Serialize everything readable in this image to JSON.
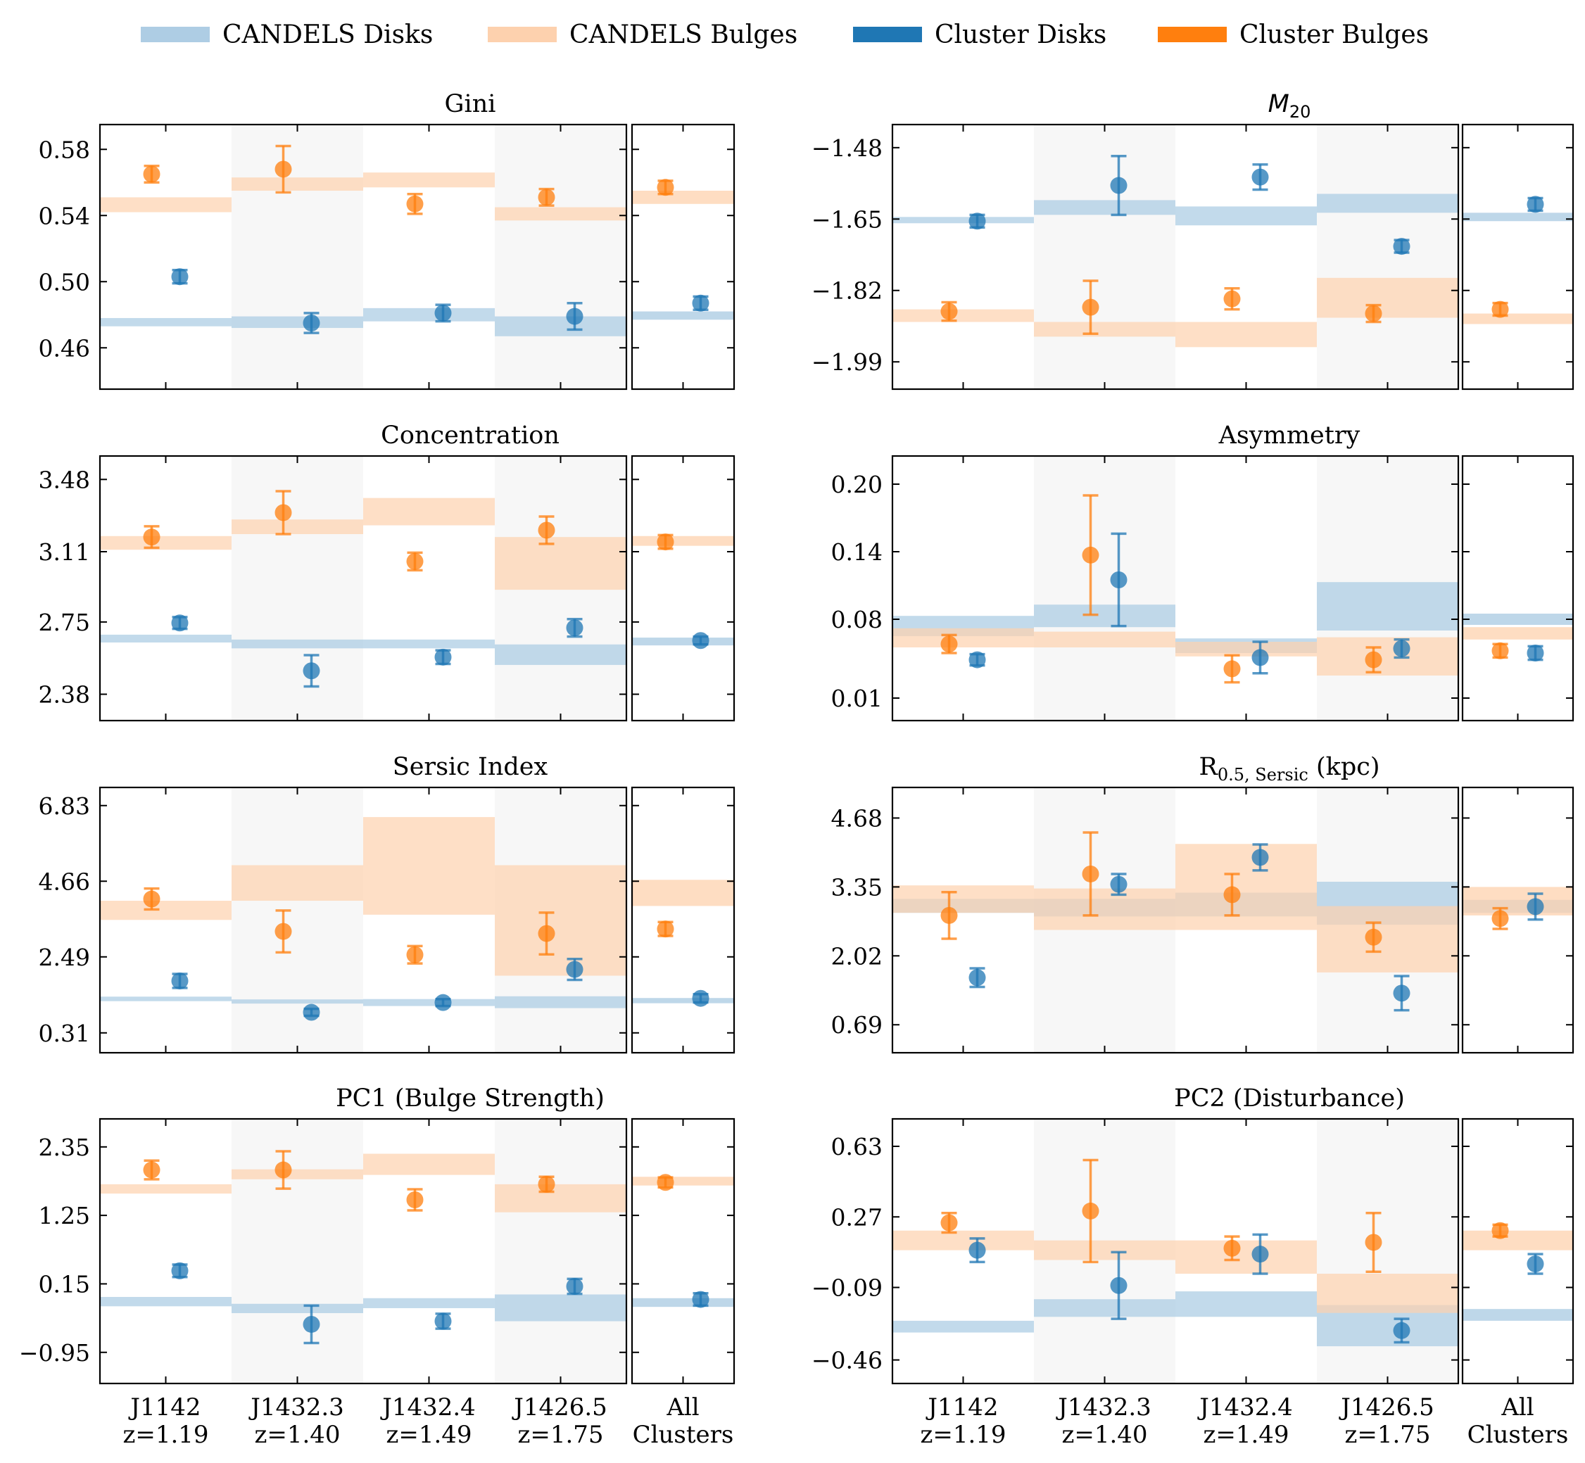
{
  "colors": {
    "candels_disk": "#aecde4",
    "candels_bulge": "#fdd1ae",
    "cluster_disk": "#1f77b4",
    "cluster_bulge": "#ff7f0e",
    "overlap": "#b3b5b8",
    "shade": "#f7f7f7"
  },
  "legend": [
    {
      "label": "CANDELS Disks",
      "color": "#aecde4"
    },
    {
      "label": "CANDELS Bulges",
      "color": "#fdd1ae"
    },
    {
      "label": "Cluster Disks",
      "color": "#1f77b4"
    },
    {
      "label": "Cluster Bulges",
      "color": "#ff7f0e"
    }
  ],
  "categories": [
    {
      "name": "J1142",
      "z": "z=1.19"
    },
    {
      "name": "J1432.3",
      "z": "z=1.40"
    },
    {
      "name": "J1432.4",
      "z": "z=1.49"
    },
    {
      "name": "J1426.5",
      "z": "z=1.75"
    }
  ],
  "all_label": [
    "All",
    "Clusters"
  ],
  "chart_data": [
    {
      "type": "scatter",
      "title": "Gini",
      "ylim": [
        0.435,
        0.595
      ],
      "yticks": [
        {
          "v": 0.58,
          "label": "0.58"
        },
        {
          "v": 0.54,
          "label": "0.54"
        },
        {
          "v": 0.5,
          "label": "0.50"
        },
        {
          "v": 0.46,
          "label": "0.46"
        }
      ],
      "disk_points": [
        {
          "y": 0.503,
          "err": 0.004
        },
        {
          "y": 0.475,
          "err": 0.006
        },
        {
          "y": 0.481,
          "err": 0.005
        },
        {
          "y": 0.479,
          "err": 0.008
        }
      ],
      "bulge_points": [
        {
          "y": 0.565,
          "err": 0.005
        },
        {
          "y": 0.568,
          "err": 0.014
        },
        {
          "y": 0.547,
          "err": 0.006
        },
        {
          "y": 0.551,
          "err": 0.005
        }
      ],
      "disk_bands": [
        [
          0.473,
          0.478
        ],
        [
          0.472,
          0.479
        ],
        [
          0.476,
          0.484
        ],
        [
          0.467,
          0.479
        ]
      ],
      "bulge_bands": [
        [
          0.542,
          0.551
        ],
        [
          0.555,
          0.563
        ],
        [
          0.557,
          0.566
        ],
        [
          0.537,
          0.545
        ]
      ],
      "all": {
        "disk": {
          "y": 0.487,
          "err": 0.004
        },
        "bulge": {
          "y": 0.557,
          "err": 0.004
        },
        "disk_band": [
          0.477,
          0.482
        ],
        "bulge_band": [
          0.547,
          0.555
        ]
      }
    },
    {
      "type": "scatter",
      "title": "M20",
      "ylim": [
        -2.055,
        -1.425
      ],
      "yticks": [
        {
          "v": -1.48,
          "label": "−1.48"
        },
        {
          "v": -1.65,
          "label": "−1.65"
        },
        {
          "v": -1.82,
          "label": "−1.82"
        },
        {
          "v": -1.99,
          "label": "−1.99"
        }
      ],
      "disk_points": [
        {
          "y": -1.655,
          "err": 0.015
        },
        {
          "y": -1.57,
          "err": 0.07
        },
        {
          "y": -1.55,
          "err": 0.03
        },
        {
          "y": -1.715,
          "err": 0.015
        }
      ],
      "bulge_points": [
        {
          "y": -1.87,
          "err": 0.022
        },
        {
          "y": -1.86,
          "err": 0.063
        },
        {
          "y": -1.84,
          "err": 0.025
        },
        {
          "y": -1.875,
          "err": 0.02
        }
      ],
      "disk_bands": [
        [
          -1.66,
          -1.645
        ],
        [
          -1.64,
          -1.605
        ],
        [
          -1.665,
          -1.62
        ],
        [
          -1.635,
          -1.59
        ]
      ],
      "bulge_bands": [
        [
          -1.895,
          -1.865
        ],
        [
          -1.93,
          -1.895
        ],
        [
          -1.955,
          -1.895
        ],
        [
          -1.885,
          -1.79
        ]
      ],
      "all": {
        "disk": {
          "y": -1.615,
          "err": 0.015
        },
        "bulge": {
          "y": -1.865,
          "err": 0.015
        },
        "disk_band": [
          -1.655,
          -1.635
        ],
        "bulge_band": [
          -1.9,
          -1.875
        ]
      }
    },
    {
      "type": "scatter",
      "title": "Concentration",
      "ylim": [
        2.245,
        3.6
      ],
      "yticks": [
        {
          "v": 3.48,
          "label": "3.48"
        },
        {
          "v": 3.11,
          "label": "3.11"
        },
        {
          "v": 2.75,
          "label": "2.75"
        },
        {
          "v": 2.38,
          "label": "2.38"
        }
      ],
      "disk_points": [
        {
          "y": 2.745,
          "err": 0.03
        },
        {
          "y": 2.5,
          "err": 0.08
        },
        {
          "y": 2.57,
          "err": 0.035
        },
        {
          "y": 2.72,
          "err": 0.045
        }
      ],
      "bulge_points": [
        {
          "y": 3.185,
          "err": 0.055
        },
        {
          "y": 3.31,
          "err": 0.11
        },
        {
          "y": 3.06,
          "err": 0.045
        },
        {
          "y": 3.22,
          "err": 0.07
        }
      ],
      "disk_bands": [
        [
          2.645,
          2.685
        ],
        [
          2.615,
          2.66
        ],
        [
          2.615,
          2.66
        ],
        [
          2.53,
          2.635
        ]
      ],
      "bulge_bands": [
        [
          3.12,
          3.19
        ],
        [
          3.2,
          3.275
        ],
        [
          3.245,
          3.385
        ],
        [
          2.915,
          3.185
        ]
      ],
      "all": {
        "disk": {
          "y": 2.655,
          "err": 0.02
        },
        "bulge": {
          "y": 3.16,
          "err": 0.035
        },
        "disk_band": [
          2.63,
          2.67
        ],
        "bulge_band": [
          3.14,
          3.19
        ]
      }
    },
    {
      "type": "scatter",
      "title": "Asymmetry",
      "ylim": [
        -0.01,
        0.225
      ],
      "yticks": [
        {
          "v": 0.2,
          "label": "0.20"
        },
        {
          "v": 0.14,
          "label": "0.14"
        },
        {
          "v": 0.08,
          "label": "0.08"
        },
        {
          "v": 0.01,
          "label": "0.01"
        }
      ],
      "disk_points": [
        {
          "y": 0.044,
          "err": 0.005
        },
        {
          "y": 0.115,
          "err": 0.041
        },
        {
          "y": 0.046,
          "err": 0.014
        },
        {
          "y": 0.054,
          "err": 0.008
        }
      ],
      "bulge_points": [
        {
          "y": 0.058,
          "err": 0.008
        },
        {
          "y": 0.137,
          "err": 0.053
        },
        {
          "y": 0.036,
          "err": 0.012
        },
        {
          "y": 0.044,
          "err": 0.011
        }
      ],
      "disk_bands": [
        [
          0.065,
          0.083
        ],
        [
          0.073,
          0.093
        ],
        [
          0.05,
          0.063
        ],
        [
          0.07,
          0.113
        ]
      ],
      "bulge_bands": [
        [
          0.055,
          0.072
        ],
        [
          0.055,
          0.069
        ],
        [
          0.047,
          0.06
        ],
        [
          0.03,
          0.064
        ]
      ],
      "all": {
        "disk": {
          "y": 0.05,
          "err": 0.006
        },
        "bulge": {
          "y": 0.052,
          "err": 0.006
        },
        "disk_band": [
          0.075,
          0.085
        ],
        "bulge_band": [
          0.062,
          0.073
        ]
      }
    },
    {
      "type": "scatter",
      "title": "Sersic Index",
      "ylim": [
        -0.26,
        7.35
      ],
      "yticks": [
        {
          "v": 6.83,
          "label": "6.83"
        },
        {
          "v": 4.66,
          "label": "4.66"
        },
        {
          "v": 2.49,
          "label": "2.49"
        },
        {
          "v": 0.31,
          "label": "0.31"
        }
      ],
      "disk_points": [
        {
          "y": 1.8,
          "err": 0.2
        },
        {
          "y": 0.9,
          "err": 0.1
        },
        {
          "y": 1.18,
          "err": 0.1
        },
        {
          "y": 2.13,
          "err": 0.3
        }
      ],
      "bulge_points": [
        {
          "y": 4.15,
          "err": 0.3
        },
        {
          "y": 3.22,
          "err": 0.6
        },
        {
          "y": 2.55,
          "err": 0.25
        },
        {
          "y": 3.16,
          "err": 0.6
        }
      ],
      "disk_bands": [
        [
          1.22,
          1.35
        ],
        [
          1.15,
          1.27
        ],
        [
          1.08,
          1.28
        ],
        [
          1.02,
          1.36
        ]
      ],
      "bulge_bands": [
        [
          3.55,
          4.1
        ],
        [
          4.1,
          5.12
        ],
        [
          3.7,
          6.5
        ],
        [
          1.95,
          5.12
        ]
      ],
      "all": {
        "disk": {
          "y": 1.3,
          "err": 0.12
        },
        "bulge": {
          "y": 3.29,
          "err": 0.2
        },
        "disk_band": [
          1.16,
          1.31
        ],
        "bulge_band": [
          3.95,
          4.7
        ]
      }
    },
    {
      "type": "scatter",
      "title": "R0.5,Sersic (kpc)",
      "title_main": "R",
      "title_sub": "0.5, Sersic",
      "title_rest": " (kpc)",
      "ylim": [
        0.15,
        5.27
      ],
      "yticks": [
        {
          "v": 4.68,
          "label": "4.68"
        },
        {
          "v": 3.35,
          "label": "3.35"
        },
        {
          "v": 2.02,
          "label": "2.02"
        },
        {
          "v": 0.69,
          "label": "0.69"
        }
      ],
      "disk_points": [
        {
          "y": 1.6,
          "err": 0.18
        },
        {
          "y": 3.4,
          "err": 0.2
        },
        {
          "y": 3.92,
          "err": 0.25
        },
        {
          "y": 1.3,
          "err": 0.33
        }
      ],
      "bulge_points": [
        {
          "y": 2.8,
          "err": 0.45
        },
        {
          "y": 3.6,
          "err": 0.8
        },
        {
          "y": 3.2,
          "err": 0.4
        },
        {
          "y": 2.38,
          "err": 0.28
        }
      ],
      "disk_bands": [
        [
          2.85,
          3.12
        ],
        [
          2.78,
          3.12
        ],
        [
          2.78,
          3.24
        ],
        [
          2.62,
          3.45
        ]
      ],
      "bulge_bands": [
        [
          2.85,
          3.38
        ],
        [
          2.52,
          3.32
        ],
        [
          2.52,
          4.18
        ],
        [
          1.7,
          2.98
        ]
      ],
      "all": {
        "disk": {
          "y": 2.97,
          "err": 0.25
        },
        "bulge": {
          "y": 2.74,
          "err": 0.2
        },
        "disk_band": [
          2.85,
          3.1
        ],
        "bulge_band": [
          2.8,
          3.35
        ]
      }
    },
    {
      "type": "scatter",
      "title": "PC1 (Bulge Strength)",
      "ylim": [
        -1.45,
        2.8
      ],
      "yticks": [
        {
          "v": 2.35,
          "label": "2.35"
        },
        {
          "v": 1.25,
          "label": "1.25"
        },
        {
          "v": 0.15,
          "label": "0.15"
        },
        {
          "v": -0.95,
          "label": "−0.95"
        }
      ],
      "disk_points": [
        {
          "y": 0.36,
          "err": 0.1
        },
        {
          "y": -0.5,
          "err": 0.3
        },
        {
          "y": -0.45,
          "err": 0.12
        },
        {
          "y": 0.11,
          "err": 0.12
        }
      ],
      "bulge_points": [
        {
          "y": 1.98,
          "err": 0.15
        },
        {
          "y": 1.98,
          "err": 0.3
        },
        {
          "y": 1.5,
          "err": 0.17
        },
        {
          "y": 1.75,
          "err": 0.12
        }
      ],
      "disk_bands": [
        [
          -0.21,
          -0.06
        ],
        [
          -0.32,
          -0.17
        ],
        [
          -0.24,
          -0.08
        ],
        [
          -0.45,
          -0.02
        ]
      ],
      "bulge_bands": [
        [
          1.6,
          1.75
        ],
        [
          1.83,
          1.99
        ],
        [
          1.9,
          2.24
        ],
        [
          1.3,
          1.75
        ]
      ],
      "all": {
        "disk": {
          "y": -0.1,
          "err": 0.1
        },
        "bulge": {
          "y": 1.78,
          "err": 0.08
        },
        "disk_band": [
          -0.22,
          -0.08
        ],
        "bulge_band": [
          1.73,
          1.87
        ]
      }
    },
    {
      "type": "scatter",
      "title": "PC2 (Disturbance)",
      "ylim": [
        -0.58,
        0.77
      ],
      "yticks": [
        {
          "v": 0.63,
          "label": "0.63"
        },
        {
          "v": 0.27,
          "label": "0.27"
        },
        {
          "v": -0.09,
          "label": "−0.09"
        },
        {
          "v": -0.46,
          "label": "−0.46"
        }
      ],
      "disk_points": [
        {
          "y": 0.1,
          "err": 0.06
        },
        {
          "y": -0.08,
          "err": 0.17
        },
        {
          "y": 0.08,
          "err": 0.1
        },
        {
          "y": -0.31,
          "err": 0.06
        }
      ],
      "bulge_points": [
        {
          "y": 0.24,
          "err": 0.05
        },
        {
          "y": 0.3,
          "err": 0.26
        },
        {
          "y": 0.11,
          "err": 0.06
        },
        {
          "y": 0.14,
          "err": 0.15
        }
      ],
      "disk_bands": [
        [
          -0.32,
          -0.26
        ],
        [
          -0.24,
          -0.15
        ],
        [
          -0.24,
          -0.11
        ],
        [
          -0.39,
          -0.18
        ]
      ],
      "bulge_bands": [
        [
          0.1,
          0.2
        ],
        [
          0.05,
          0.15
        ],
        [
          -0.02,
          0.15
        ],
        [
          -0.22,
          -0.02
        ]
      ],
      "all": {
        "disk": {
          "y": 0.03,
          "err": 0.05
        },
        "bulge": {
          "y": 0.2,
          "err": 0.03
        },
        "disk_band": [
          -0.26,
          -0.2
        ],
        "bulge_band": [
          0.1,
          0.2
        ]
      }
    }
  ]
}
